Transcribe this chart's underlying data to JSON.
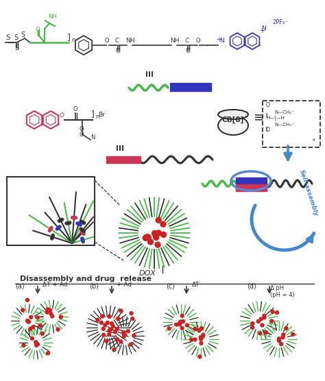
{
  "bg_color": "#ffffff",
  "green_color": "#44bb44",
  "blue_color": "#3333bb",
  "red_color": "#cc2222",
  "dark_color": "#333333",
  "pink_color": "#cc3355",
  "light_blue": "#5588cc",
  "arrow_blue": "#4488cc",
  "dox_label": "DOX",
  "self_assembly_label": "Self-assembly",
  "disassembly_label": "Disassembly and drug  release",
  "cond_a": "ΔT + Ad",
  "cond_b": "+ Ad",
  "cond_c": "ΔT",
  "cond_d": "Δ pH\n(pH = 4)"
}
